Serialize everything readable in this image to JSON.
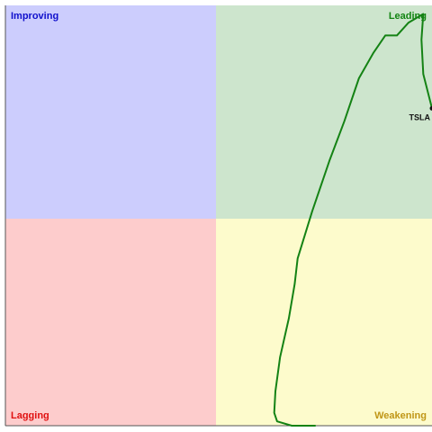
{
  "chart_data": {
    "type": "line",
    "x_range": [
      96,
      103.3
    ],
    "y_range": [
      97.5,
      102.4
    ],
    "quadrants": [
      {
        "name": "Improving",
        "label_color": "#1010cc",
        "fill": "#cccdfd"
      },
      {
        "name": "Leading",
        "label_color": "#128412",
        "fill": "#cde5cd"
      },
      {
        "name": "Lagging",
        "label_color": "#e01010",
        "fill": "#fdcccc"
      },
      {
        "name": "Weakening",
        "label_color": "#c09616",
        "fill": "#fdfbcc"
      }
    ],
    "series": [
      {
        "name": "TSLA",
        "color": "#148214",
        "points": [
          [
            101.3,
            97.5
          ],
          [
            100.9,
            97.5
          ],
          [
            100.65,
            97.55
          ],
          [
            100.6,
            97.65
          ],
          [
            100.62,
            97.9
          ],
          [
            100.7,
            98.3
          ],
          [
            100.85,
            98.75
          ],
          [
            100.95,
            99.15
          ],
          [
            101.0,
            99.45
          ],
          [
            101.25,
            100.0
          ],
          [
            101.55,
            100.6
          ],
          [
            101.8,
            101.05
          ],
          [
            102.05,
            101.55
          ],
          [
            102.3,
            101.85
          ],
          [
            102.5,
            102.05
          ],
          [
            102.7,
            102.05
          ],
          [
            102.9,
            102.2
          ],
          [
            103.15,
            102.3
          ],
          [
            103.12,
            102.0
          ],
          [
            103.15,
            101.6
          ],
          [
            103.3,
            101.2
          ]
        ]
      }
    ]
  }
}
